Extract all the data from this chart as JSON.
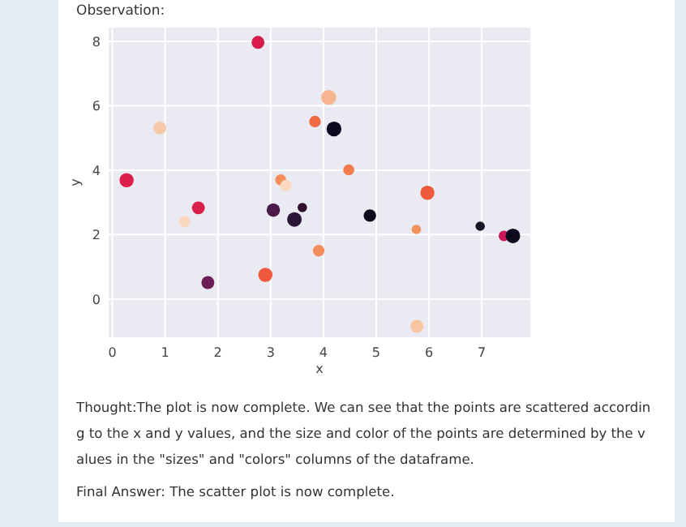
{
  "chart_data": {
    "type": "bubble",
    "xlabel": "x",
    "ylabel": "y",
    "annotations": [
      "Observation:",
      "Thought:The plot is now complete. We can see that the points are scattered according to the x and y values, and the size and color of the points are determined by the values in the \"sizes\" and \"colors\" columns of the dataframe.",
      "Final Answer: The scatter plot is now complete."
    ],
    "x": [
      2.76,
      0.9,
      4.1,
      3.84,
      4.2,
      0.27,
      4.48,
      3.19,
      3.29,
      5.97,
      1.63,
      1.37,
      3.05,
      3.6,
      3.45,
      4.88,
      5.76,
      6.97,
      7.42,
      7.59,
      3.91,
      2.9,
      1.81,
      5.77
    ],
    "values": [
      7.97,
      5.31,
      6.26,
      5.51,
      5.28,
      3.69,
      4.01,
      3.7,
      3.52,
      3.3,
      2.83,
      2.4,
      2.76,
      2.84,
      2.47,
      2.59,
      2.16,
      2.26,
      1.96,
      1.96,
      1.5,
      0.75,
      0.51,
      -0.85
    ],
    "sizes": [
      0.75,
      0.75,
      1,
      0.6,
      1,
      0.9,
      0.55,
      0.55,
      0.6,
      0.9,
      0.75,
      0.55,
      0.8,
      0.4,
      0.95,
      0.7,
      0.4,
      0.4,
      0.5,
      0.95,
      0.6,
      0.9,
      0.75,
      0.75
    ],
    "colors": [
      "#d81b4b",
      "#f7c9a8",
      "#f6b48f",
      "#f06a43",
      "#0b0920",
      "#dd1e48",
      "#f27a4c",
      "#f48e5a",
      "#fbd9c0",
      "#ef5a3c",
      "#d9204a",
      "#f9d6bd",
      "#4a1a4a",
      "#2d1230",
      "#2a1438",
      "#0d0a1e",
      "#f3925e",
      "#1b1227",
      "#c8185a",
      "#0d0a1e",
      "#f38b5b",
      "#ef5a3c",
      "#6b1d55",
      "#f7c59f"
    ],
    "xlim": [
      -0.07,
      7.92
    ],
    "ylim": [
      -1.19,
      8.43
    ],
    "xticks": [
      0,
      1,
      2,
      3,
      4,
      5,
      6,
      7
    ],
    "yticks": [
      0,
      2,
      4,
      6,
      8
    ],
    "grid": true,
    "marker": "circle"
  }
}
